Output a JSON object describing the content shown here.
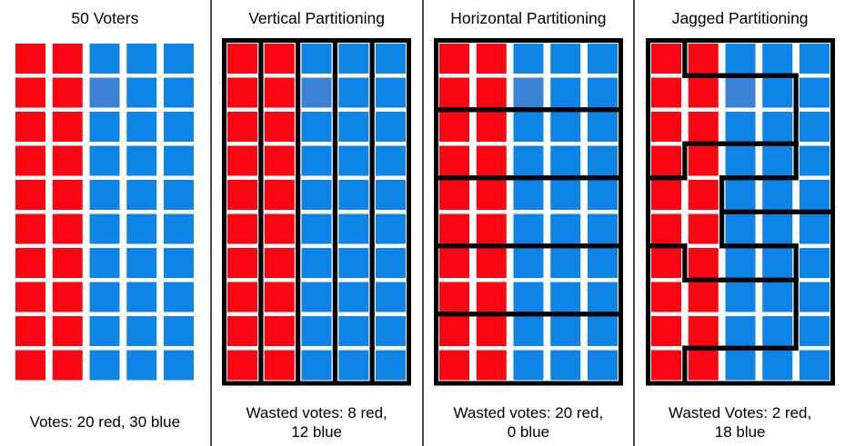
{
  "colors": {
    "red": "#fa0511",
    "blue": "#0d84e6",
    "light_blue": "#3b82d4",
    "district_line": "#000000",
    "divider": "#4a4a4a",
    "background": "#ffffff",
    "text": "#000000"
  },
  "grid": {
    "rows": 10,
    "cols": 5,
    "cell_colors": [
      "RRBBB",
      "RRLBB",
      "RRBBB",
      "RRBBB",
      "RRBBB",
      "RRBBB",
      "RRBBB",
      "RRBBB",
      "RRBBB",
      "RRBBB"
    ]
  },
  "panels": [
    {
      "id": "fifty-voters",
      "title": "50 Voters",
      "caption_line1": "Votes: 20 red, 30 blue",
      "caption_line2": "",
      "districts": []
    },
    {
      "id": "vertical-partitioning",
      "title": "Vertical Partitioning",
      "caption_line1": "Wasted votes: 8 red,",
      "caption_line2": "12 blue",
      "districts": [
        [
          [
            0,
            0
          ],
          [
            1,
            0
          ],
          [
            2,
            0
          ],
          [
            3,
            0
          ],
          [
            4,
            0
          ],
          [
            5,
            0
          ],
          [
            6,
            0
          ],
          [
            7,
            0
          ],
          [
            8,
            0
          ],
          [
            9,
            0
          ]
        ],
        [
          [
            0,
            1
          ],
          [
            1,
            1
          ],
          [
            2,
            1
          ],
          [
            3,
            1
          ],
          [
            4,
            1
          ],
          [
            5,
            1
          ],
          [
            6,
            1
          ],
          [
            7,
            1
          ],
          [
            8,
            1
          ],
          [
            9,
            1
          ]
        ],
        [
          [
            0,
            2
          ],
          [
            1,
            2
          ],
          [
            2,
            2
          ],
          [
            3,
            2
          ],
          [
            4,
            2
          ],
          [
            5,
            2
          ],
          [
            6,
            2
          ],
          [
            7,
            2
          ],
          [
            8,
            2
          ],
          [
            9,
            2
          ]
        ],
        [
          [
            0,
            3
          ],
          [
            1,
            3
          ],
          [
            2,
            3
          ],
          [
            3,
            3
          ],
          [
            4,
            3
          ],
          [
            5,
            3
          ],
          [
            6,
            3
          ],
          [
            7,
            3
          ],
          [
            8,
            3
          ],
          [
            9,
            3
          ]
        ],
        [
          [
            0,
            4
          ],
          [
            1,
            4
          ],
          [
            2,
            4
          ],
          [
            3,
            4
          ],
          [
            4,
            4
          ],
          [
            5,
            4
          ],
          [
            6,
            4
          ],
          [
            7,
            4
          ],
          [
            8,
            4
          ],
          [
            9,
            4
          ]
        ]
      ]
    },
    {
      "id": "horizontal-partitioning",
      "title": "Horizontal Partitioning",
      "caption_line1": "Wasted votes: 20 red,",
      "caption_line2": "0 blue",
      "districts": [
        [
          [
            0,
            0
          ],
          [
            0,
            1
          ],
          [
            0,
            2
          ],
          [
            0,
            3
          ],
          [
            0,
            4
          ],
          [
            1,
            0
          ],
          [
            1,
            1
          ],
          [
            1,
            2
          ],
          [
            1,
            3
          ],
          [
            1,
            4
          ]
        ],
        [
          [
            2,
            0
          ],
          [
            2,
            1
          ],
          [
            2,
            2
          ],
          [
            2,
            3
          ],
          [
            2,
            4
          ],
          [
            3,
            0
          ],
          [
            3,
            1
          ],
          [
            3,
            2
          ],
          [
            3,
            3
          ],
          [
            3,
            4
          ]
        ],
        [
          [
            4,
            0
          ],
          [
            4,
            1
          ],
          [
            4,
            2
          ],
          [
            4,
            3
          ],
          [
            4,
            4
          ],
          [
            5,
            0
          ],
          [
            5,
            1
          ],
          [
            5,
            2
          ],
          [
            5,
            3
          ],
          [
            5,
            4
          ]
        ],
        [
          [
            6,
            0
          ],
          [
            6,
            1
          ],
          [
            6,
            2
          ],
          [
            6,
            3
          ],
          [
            6,
            4
          ],
          [
            7,
            0
          ],
          [
            7,
            1
          ],
          [
            7,
            2
          ],
          [
            7,
            3
          ],
          [
            7,
            4
          ]
        ],
        [
          [
            8,
            0
          ],
          [
            8,
            1
          ],
          [
            8,
            2
          ],
          [
            8,
            3
          ],
          [
            8,
            4
          ],
          [
            9,
            0
          ],
          [
            9,
            1
          ],
          [
            9,
            2
          ],
          [
            9,
            3
          ],
          [
            9,
            4
          ]
        ]
      ]
    },
    {
      "id": "jagged-partitioning",
      "title": "Jagged Partitioning",
      "caption_line1": "Wasted Votes: 2 red,",
      "caption_line2": "18 blue",
      "districts": [
        [
          [
            0,
            1
          ],
          [
            0,
            2
          ],
          [
            0,
            3
          ],
          [
            0,
            4
          ],
          [
            1,
            4
          ],
          [
            2,
            4
          ],
          [
            3,
            4
          ],
          [
            4,
            2
          ],
          [
            4,
            3
          ],
          [
            4,
            4
          ]
        ],
        [
          [
            0,
            0
          ],
          [
            1,
            0
          ],
          [
            2,
            0
          ],
          [
            3,
            0
          ],
          [
            1,
            1
          ],
          [
            1,
            2
          ],
          [
            1,
            3
          ],
          [
            2,
            1
          ],
          [
            2,
            2
          ],
          [
            2,
            3
          ]
        ],
        [
          [
            3,
            1
          ],
          [
            3,
            2
          ],
          [
            3,
            3
          ],
          [
            4,
            0
          ],
          [
            4,
            1
          ],
          [
            5,
            0
          ],
          [
            5,
            1
          ],
          [
            6,
            1
          ],
          [
            6,
            2
          ],
          [
            6,
            3
          ]
        ],
        [
          [
            5,
            2
          ],
          [
            5,
            3
          ],
          [
            5,
            4
          ],
          [
            6,
            4
          ],
          [
            7,
            4
          ],
          [
            8,
            4
          ],
          [
            9,
            1
          ],
          [
            9,
            2
          ],
          [
            9,
            3
          ],
          [
            9,
            4
          ]
        ],
        [
          [
            6,
            0
          ],
          [
            7,
            0
          ],
          [
            7,
            1
          ],
          [
            7,
            2
          ],
          [
            7,
            3
          ],
          [
            8,
            0
          ],
          [
            8,
            1
          ],
          [
            8,
            2
          ],
          [
            8,
            3
          ],
          [
            9,
            0
          ]
        ]
      ]
    }
  ]
}
